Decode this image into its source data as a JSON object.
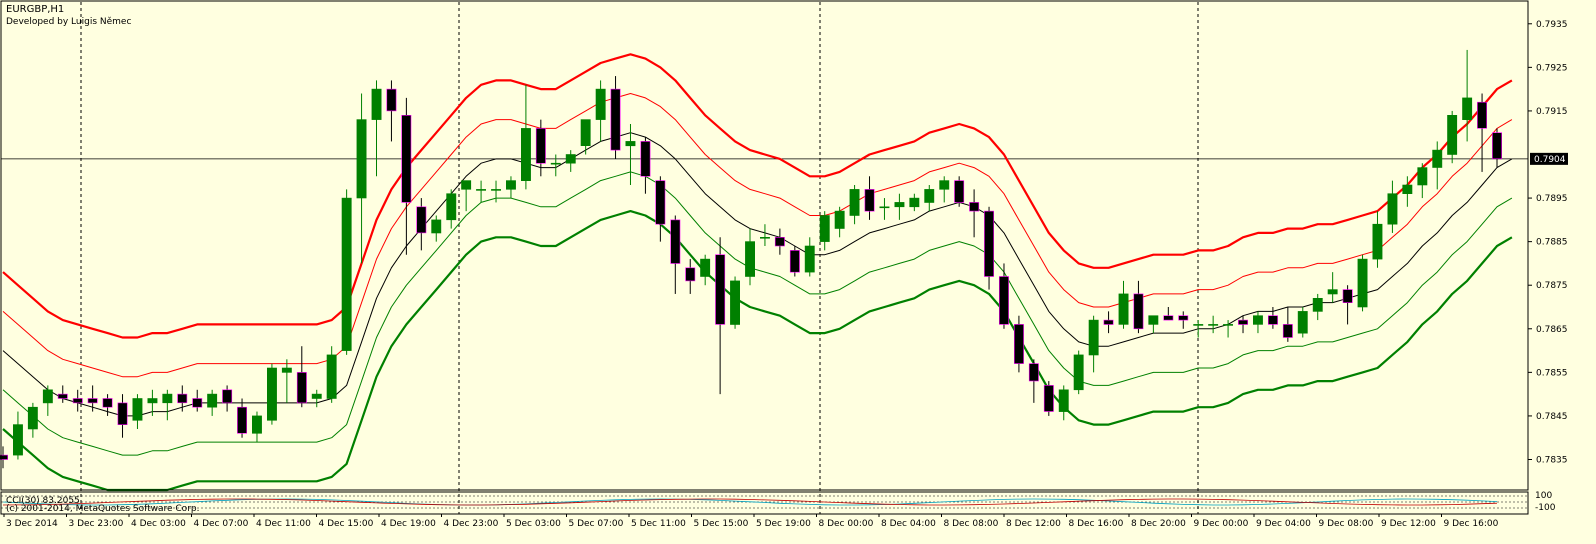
{
  "window": {
    "title": "EURGBP,H1",
    "subtitle": "Developed by Luigis Němec",
    "subwindow_label": "CCI(30) 83.2055",
    "watermark": "(c) 2001-2014, MetaQuotes Software Corp.",
    "subwindow_ticks": [
      "100",
      "-100"
    ]
  },
  "colors": {
    "background": "#ffffe0",
    "bull": "#008000",
    "bear": "#000000",
    "band_outer": "#ff0000",
    "band_inner": "#ff0000",
    "middle": "#000000",
    "lower_inner": "#008000",
    "lower_outer": "#008000"
  },
  "chart_data": {
    "type": "candlestick",
    "symbol": "EURGBP",
    "timeframe": "H1",
    "current_price": "0.7904",
    "yticks": [
      "0.7935",
      "0.7925",
      "0.7915",
      "0.7895",
      "0.7885",
      "0.7875",
      "0.7865",
      "0.7855",
      "0.7845",
      "0.7835"
    ],
    "ylim": [
      0.7828,
      0.794
    ],
    "xlabels": [
      "3 Dec 2014",
      "3 Dec 23:00",
      "4 Dec 03:00",
      "4 Dec 07:00",
      "4 Dec 11:00",
      "4 Dec 15:00",
      "4 Dec 19:00",
      "4 Dec 23:00",
      "5 Dec 03:00",
      "5 Dec 07:00",
      "5 Dec 11:00",
      "5 Dec 15:00",
      "5 Dec 19:00",
      "8 Dec 00:00",
      "8 Dec 04:00",
      "8 Dec 08:00",
      "8 Dec 12:00",
      "8 Dec 16:00",
      "8 Dec 20:00",
      "9 Dec 00:00",
      "9 Dec 04:00",
      "9 Dec 08:00",
      "9 Dec 12:00",
      "9 Dec 16:00"
    ],
    "candles": [
      {
        "o": 0.7836,
        "h": 0.7838,
        "l": 0.7833,
        "c": 0.7835
      },
      {
        "o": 0.7836,
        "h": 0.7846,
        "l": 0.7835,
        "c": 0.7843
      },
      {
        "o": 0.7842,
        "h": 0.7848,
        "l": 0.784,
        "c": 0.7847
      },
      {
        "o": 0.7848,
        "h": 0.7852,
        "l": 0.7845,
        "c": 0.7851
      },
      {
        "o": 0.785,
        "h": 0.7852,
        "l": 0.7848,
        "c": 0.7849
      },
      {
        "o": 0.7849,
        "h": 0.7851,
        "l": 0.7846,
        "c": 0.7848
      },
      {
        "o": 0.7849,
        "h": 0.7852,
        "l": 0.7846,
        "c": 0.7848
      },
      {
        "o": 0.7849,
        "h": 0.785,
        "l": 0.7845,
        "c": 0.7847
      },
      {
        "o": 0.7848,
        "h": 0.785,
        "l": 0.784,
        "c": 0.7843
      },
      {
        "o": 0.7844,
        "h": 0.785,
        "l": 0.7842,
        "c": 0.7849
      },
      {
        "o": 0.7848,
        "h": 0.7851,
        "l": 0.7845,
        "c": 0.7849
      },
      {
        "o": 0.7848,
        "h": 0.7851,
        "l": 0.7844,
        "c": 0.785
      },
      {
        "o": 0.785,
        "h": 0.7852,
        "l": 0.7846,
        "c": 0.7848
      },
      {
        "o": 0.7849,
        "h": 0.7851,
        "l": 0.7846,
        "c": 0.7847
      },
      {
        "o": 0.7847,
        "h": 0.7851,
        "l": 0.7845,
        "c": 0.785
      },
      {
        "o": 0.7851,
        "h": 0.7852,
        "l": 0.7846,
        "c": 0.7848
      },
      {
        "o": 0.7847,
        "h": 0.7849,
        "l": 0.784,
        "c": 0.7841
      },
      {
        "o": 0.7841,
        "h": 0.7846,
        "l": 0.7839,
        "c": 0.7845
      },
      {
        "o": 0.7844,
        "h": 0.7857,
        "l": 0.7843,
        "c": 0.7856
      },
      {
        "o": 0.7855,
        "h": 0.7858,
        "l": 0.7848,
        "c": 0.7856
      },
      {
        "o": 0.7855,
        "h": 0.7861,
        "l": 0.7847,
        "c": 0.7848
      },
      {
        "o": 0.7849,
        "h": 0.7851,
        "l": 0.7847,
        "c": 0.785
      },
      {
        "o": 0.7849,
        "h": 0.7861,
        "l": 0.7848,
        "c": 0.7859
      },
      {
        "o": 0.786,
        "h": 0.7897,
        "l": 0.7859,
        "c": 0.7895
      },
      {
        "o": 0.7895,
        "h": 0.7919,
        "l": 0.788,
        "c": 0.7913
      },
      {
        "o": 0.7913,
        "h": 0.7922,
        "l": 0.79,
        "c": 0.792
      },
      {
        "o": 0.792,
        "h": 0.7922,
        "l": 0.7908,
        "c": 0.7915
      },
      {
        "o": 0.7914,
        "h": 0.7918,
        "l": 0.7882,
        "c": 0.7894
      },
      {
        "o": 0.7893,
        "h": 0.7895,
        "l": 0.7883,
        "c": 0.7887
      },
      {
        "o": 0.7887,
        "h": 0.7891,
        "l": 0.7885,
        "c": 0.789
      },
      {
        "o": 0.789,
        "h": 0.7897,
        "l": 0.7888,
        "c": 0.7896
      },
      {
        "o": 0.7897,
        "h": 0.7899,
        "l": 0.7892,
        "c": 0.7899
      },
      {
        "o": 0.7897,
        "h": 0.7899,
        "l": 0.7894,
        "c": 0.7897
      },
      {
        "o": 0.7897,
        "h": 0.7899,
        "l": 0.7894,
        "c": 0.7897
      },
      {
        "o": 0.7897,
        "h": 0.79,
        "l": 0.7895,
        "c": 0.7899
      },
      {
        "o": 0.7899,
        "h": 0.7921,
        "l": 0.7897,
        "c": 0.7911
      },
      {
        "o": 0.7911,
        "h": 0.7913,
        "l": 0.79,
        "c": 0.7903
      },
      {
        "o": 0.7903,
        "h": 0.7905,
        "l": 0.79,
        "c": 0.7903
      },
      {
        "o": 0.7903,
        "h": 0.7906,
        "l": 0.7901,
        "c": 0.7905
      },
      {
        "o": 0.7907,
        "h": 0.7912,
        "l": 0.7905,
        "c": 0.7913
      },
      {
        "o": 0.7913,
        "h": 0.7922,
        "l": 0.7908,
        "c": 0.792
      },
      {
        "o": 0.792,
        "h": 0.7923,
        "l": 0.7904,
        "c": 0.7906
      },
      {
        "o": 0.7907,
        "h": 0.7912,
        "l": 0.7898,
        "c": 0.7908
      },
      {
        "o": 0.7908,
        "h": 0.7909,
        "l": 0.7896,
        "c": 0.79
      },
      {
        "o": 0.7899,
        "h": 0.79,
        "l": 0.7885,
        "c": 0.7889
      },
      {
        "o": 0.789,
        "h": 0.7891,
        "l": 0.7873,
        "c": 0.788
      },
      {
        "o": 0.7879,
        "h": 0.7881,
        "l": 0.7873,
        "c": 0.7876
      },
      {
        "o": 0.7877,
        "h": 0.7882,
        "l": 0.7875,
        "c": 0.7881
      },
      {
        "o": 0.7882,
        "h": 0.7886,
        "l": 0.785,
        "c": 0.7866
      },
      {
        "o": 0.7866,
        "h": 0.7877,
        "l": 0.7865,
        "c": 0.7876
      },
      {
        "o": 0.7877,
        "h": 0.7888,
        "l": 0.7875,
        "c": 0.7885
      },
      {
        "o": 0.7886,
        "h": 0.7889,
        "l": 0.7884,
        "c": 0.7886
      },
      {
        "o": 0.7886,
        "h": 0.7888,
        "l": 0.7882,
        "c": 0.7884
      },
      {
        "o": 0.7883,
        "h": 0.7884,
        "l": 0.7877,
        "c": 0.7878
      },
      {
        "o": 0.7878,
        "h": 0.7886,
        "l": 0.7877,
        "c": 0.7884
      },
      {
        "o": 0.7885,
        "h": 0.7892,
        "l": 0.7883,
        "c": 0.7891
      },
      {
        "o": 0.7888,
        "h": 0.7893,
        "l": 0.7886,
        "c": 0.7892
      },
      {
        "o": 0.7891,
        "h": 0.7898,
        "l": 0.7889,
        "c": 0.7897
      },
      {
        "o": 0.7897,
        "h": 0.79,
        "l": 0.789,
        "c": 0.7892
      },
      {
        "o": 0.7893,
        "h": 0.7895,
        "l": 0.789,
        "c": 0.7893
      },
      {
        "o": 0.7893,
        "h": 0.7896,
        "l": 0.789,
        "c": 0.7894
      },
      {
        "o": 0.7893,
        "h": 0.7896,
        "l": 0.7892,
        "c": 0.7895
      },
      {
        "o": 0.7894,
        "h": 0.7898,
        "l": 0.7892,
        "c": 0.7897
      },
      {
        "o": 0.7897,
        "h": 0.79,
        "l": 0.7894,
        "c": 0.7899
      },
      {
        "o": 0.7899,
        "h": 0.79,
        "l": 0.7893,
        "c": 0.7894
      },
      {
        "o": 0.7894,
        "h": 0.7897,
        "l": 0.7886,
        "c": 0.7892
      },
      {
        "o": 0.7892,
        "h": 0.7893,
        "l": 0.7874,
        "c": 0.7877
      },
      {
        "o": 0.7877,
        "h": 0.788,
        "l": 0.7865,
        "c": 0.7866
      },
      {
        "o": 0.7866,
        "h": 0.7868,
        "l": 0.7855,
        "c": 0.7857
      },
      {
        "o": 0.7857,
        "h": 0.7858,
        "l": 0.7848,
        "c": 0.7853
      },
      {
        "o": 0.7852,
        "h": 0.7853,
        "l": 0.7845,
        "c": 0.7846
      },
      {
        "o": 0.7846,
        "h": 0.7852,
        "l": 0.7844,
        "c": 0.7851
      },
      {
        "o": 0.7851,
        "h": 0.786,
        "l": 0.785,
        "c": 0.7859
      },
      {
        "o": 0.7859,
        "h": 0.7868,
        "l": 0.7855,
        "c": 0.7867
      },
      {
        "o": 0.7867,
        "h": 0.7869,
        "l": 0.7864,
        "c": 0.7866
      },
      {
        "o": 0.7866,
        "h": 0.7876,
        "l": 0.7865,
        "c": 0.7873
      },
      {
        "o": 0.7873,
        "h": 0.7876,
        "l": 0.7864,
        "c": 0.7865
      },
      {
        "o": 0.7866,
        "h": 0.7868,
        "l": 0.7864,
        "c": 0.7868
      },
      {
        "o": 0.7868,
        "h": 0.787,
        "l": 0.7867,
        "c": 0.7867
      },
      {
        "o": 0.7868,
        "h": 0.7869,
        "l": 0.7865,
        "c": 0.7867
      },
      {
        "o": 0.7866,
        "h": 0.7867,
        "l": 0.7863,
        "c": 0.7866
      },
      {
        "o": 0.7866,
        "h": 0.7868,
        "l": 0.7864,
        "c": 0.7866
      },
      {
        "o": 0.7866,
        "h": 0.7867,
        "l": 0.7863,
        "c": 0.7866
      },
      {
        "o": 0.7867,
        "h": 0.7868,
        "l": 0.7864,
        "c": 0.7866
      },
      {
        "o": 0.7866,
        "h": 0.7869,
        "l": 0.7864,
        "c": 0.7868
      },
      {
        "o": 0.7868,
        "h": 0.787,
        "l": 0.7865,
        "c": 0.7866
      },
      {
        "o": 0.7866,
        "h": 0.787,
        "l": 0.7862,
        "c": 0.7863
      },
      {
        "o": 0.7864,
        "h": 0.787,
        "l": 0.7863,
        "c": 0.7869
      },
      {
        "o": 0.7869,
        "h": 0.7873,
        "l": 0.7867,
        "c": 0.7872
      },
      {
        "o": 0.7873,
        "h": 0.7878,
        "l": 0.7871,
        "c": 0.7874
      },
      {
        "o": 0.7874,
        "h": 0.7875,
        "l": 0.7866,
        "c": 0.7871
      },
      {
        "o": 0.787,
        "h": 0.7882,
        "l": 0.7869,
        "c": 0.7881
      },
      {
        "o": 0.7881,
        "h": 0.7892,
        "l": 0.7879,
        "c": 0.7889
      },
      {
        "o": 0.7889,
        "h": 0.7899,
        "l": 0.7887,
        "c": 0.7896
      },
      {
        "o": 0.7896,
        "h": 0.79,
        "l": 0.7893,
        "c": 0.7898
      },
      {
        "o": 0.7898,
        "h": 0.7903,
        "l": 0.7895,
        "c": 0.7902
      },
      {
        "o": 0.7902,
        "h": 0.7908,
        "l": 0.7897,
        "c": 0.7906
      },
      {
        "o": 0.7905,
        "h": 0.7915,
        "l": 0.7903,
        "c": 0.7914
      },
      {
        "o": 0.7913,
        "h": 0.7929,
        "l": 0.7908,
        "c": 0.7918
      },
      {
        "o": 0.7917,
        "h": 0.7919,
        "l": 0.7901,
        "c": 0.7911
      },
      {
        "o": 0.791,
        "h": 0.7911,
        "l": 0.7902,
        "c": 0.7904
      }
    ],
    "bands": {
      "upper_outer": [
        0.7878,
        0.7875,
        0.7872,
        0.7869,
        0.7867,
        0.7866,
        0.7865,
        0.7864,
        0.7863,
        0.7863,
        0.7864,
        0.7864,
        0.7865,
        0.7866,
        0.7866,
        0.7866,
        0.7866,
        0.7866,
        0.7866,
        0.7866,
        0.7866,
        0.7866,
        0.7867,
        0.787,
        0.788,
        0.789,
        0.7897,
        0.7902,
        0.7906,
        0.791,
        0.7914,
        0.7918,
        0.7921,
        0.7922,
        0.7922,
        0.7921,
        0.792,
        0.792,
        0.7922,
        0.7924,
        0.7926,
        0.7927,
        0.7928,
        0.7927,
        0.7925,
        0.7922,
        0.7918,
        0.7914,
        0.7911,
        0.7908,
        0.7906,
        0.7905,
        0.7904,
        0.7902,
        0.79,
        0.79,
        0.7901,
        0.7903,
        0.7905,
        0.7906,
        0.7907,
        0.7908,
        0.791,
        0.7911,
        0.7912,
        0.7911,
        0.7909,
        0.7905,
        0.7899,
        0.7893,
        0.7887,
        0.7883,
        0.788,
        0.7879,
        0.7879,
        0.788,
        0.7881,
        0.7882,
        0.7882,
        0.7882,
        0.7883,
        0.7883,
        0.7884,
        0.7886,
        0.7887,
        0.7887,
        0.7888,
        0.7888,
        0.7889,
        0.7889,
        0.789,
        0.7891,
        0.7892,
        0.7895,
        0.7898,
        0.7902,
        0.7905,
        0.7909,
        0.7912,
        0.7916,
        0.792,
        0.7922
      ],
      "upper_inner": [
        0.7869,
        0.7866,
        0.7863,
        0.786,
        0.7858,
        0.7857,
        0.7856,
        0.7855,
        0.7854,
        0.7854,
        0.7855,
        0.7855,
        0.7856,
        0.7857,
        0.7857,
        0.7857,
        0.7857,
        0.7857,
        0.7857,
        0.7857,
        0.7857,
        0.7857,
        0.7858,
        0.7861,
        0.7871,
        0.7881,
        0.7888,
        0.7893,
        0.7897,
        0.7901,
        0.7905,
        0.7909,
        0.7912,
        0.7913,
        0.7913,
        0.7912,
        0.7911,
        0.7911,
        0.7913,
        0.7915,
        0.7917,
        0.7918,
        0.7919,
        0.7918,
        0.7916,
        0.7913,
        0.7909,
        0.7905,
        0.7902,
        0.7899,
        0.7897,
        0.7896,
        0.7895,
        0.7893,
        0.7891,
        0.7891,
        0.7892,
        0.7894,
        0.7896,
        0.7897,
        0.7898,
        0.7899,
        0.7901,
        0.7902,
        0.7903,
        0.7902,
        0.79,
        0.7896,
        0.789,
        0.7884,
        0.7878,
        0.7874,
        0.7871,
        0.787,
        0.787,
        0.7871,
        0.7872,
        0.7873,
        0.7873,
        0.7873,
        0.7874,
        0.7874,
        0.7875,
        0.7877,
        0.7878,
        0.7878,
        0.7879,
        0.7879,
        0.788,
        0.788,
        0.7881,
        0.7882,
        0.7883,
        0.7886,
        0.7889,
        0.7893,
        0.7896,
        0.79,
        0.7903,
        0.7907,
        0.7911,
        0.7913
      ],
      "middle": [
        0.786,
        0.7857,
        0.7854,
        0.7851,
        0.7849,
        0.7848,
        0.7847,
        0.7846,
        0.7845,
        0.7845,
        0.7846,
        0.7846,
        0.7847,
        0.7848,
        0.7848,
        0.7848,
        0.7848,
        0.7848,
        0.7848,
        0.7848,
        0.7848,
        0.7848,
        0.7849,
        0.7852,
        0.7862,
        0.7872,
        0.7879,
        0.7884,
        0.7888,
        0.7892,
        0.7896,
        0.79,
        0.7903,
        0.7904,
        0.7904,
        0.7903,
        0.7902,
        0.7902,
        0.7904,
        0.7906,
        0.7908,
        0.7909,
        0.791,
        0.7909,
        0.7907,
        0.7904,
        0.79,
        0.7896,
        0.7893,
        0.789,
        0.7888,
        0.7887,
        0.7886,
        0.7884,
        0.7882,
        0.7882,
        0.7883,
        0.7885,
        0.7887,
        0.7888,
        0.7889,
        0.789,
        0.7892,
        0.7893,
        0.7894,
        0.7893,
        0.7891,
        0.7887,
        0.7881,
        0.7875,
        0.7869,
        0.7865,
        0.7862,
        0.7861,
        0.7861,
        0.7862,
        0.7863,
        0.7864,
        0.7864,
        0.7864,
        0.7865,
        0.7865,
        0.7866,
        0.7868,
        0.7869,
        0.7869,
        0.787,
        0.787,
        0.7871,
        0.7871,
        0.7872,
        0.7873,
        0.7874,
        0.7877,
        0.788,
        0.7884,
        0.7887,
        0.7891,
        0.7894,
        0.7898,
        0.7902,
        0.7904
      ],
      "lower_inner": [
        0.7851,
        0.7848,
        0.7845,
        0.7842,
        0.784,
        0.7839,
        0.7838,
        0.7837,
        0.7836,
        0.7836,
        0.7837,
        0.7837,
        0.7838,
        0.7839,
        0.7839,
        0.7839,
        0.7839,
        0.7839,
        0.7839,
        0.7839,
        0.7839,
        0.7839,
        0.784,
        0.7843,
        0.7853,
        0.7863,
        0.787,
        0.7875,
        0.7879,
        0.7883,
        0.7887,
        0.7891,
        0.7894,
        0.7895,
        0.7895,
        0.7894,
        0.7893,
        0.7893,
        0.7895,
        0.7897,
        0.7899,
        0.79,
        0.7901,
        0.79,
        0.7898,
        0.7895,
        0.7891,
        0.7887,
        0.7884,
        0.7881,
        0.7879,
        0.7878,
        0.7877,
        0.7875,
        0.7873,
        0.7873,
        0.7874,
        0.7876,
        0.7878,
        0.7879,
        0.788,
        0.7881,
        0.7883,
        0.7884,
        0.7885,
        0.7884,
        0.7882,
        0.7878,
        0.7872,
        0.7866,
        0.786,
        0.7856,
        0.7853,
        0.7852,
        0.7852,
        0.7853,
        0.7854,
        0.7855,
        0.7855,
        0.7855,
        0.7856,
        0.7856,
        0.7857,
        0.7859,
        0.786,
        0.786,
        0.7861,
        0.7861,
        0.7862,
        0.7862,
        0.7863,
        0.7864,
        0.7865,
        0.7868,
        0.7871,
        0.7875,
        0.7878,
        0.7882,
        0.7885,
        0.7889,
        0.7893,
        0.7895
      ],
      "lower_outer": [
        0.7842,
        0.7839,
        0.7836,
        0.7833,
        0.7831,
        0.783,
        0.7829,
        0.7828,
        0.7827,
        0.7827,
        0.7828,
        0.7828,
        0.7829,
        0.783,
        0.783,
        0.783,
        0.783,
        0.783,
        0.783,
        0.783,
        0.783,
        0.783,
        0.7831,
        0.7834,
        0.7844,
        0.7854,
        0.7861,
        0.7866,
        0.787,
        0.7874,
        0.7878,
        0.7882,
        0.7885,
        0.7886,
        0.7886,
        0.7885,
        0.7884,
        0.7884,
        0.7886,
        0.7888,
        0.789,
        0.7891,
        0.7892,
        0.7891,
        0.7889,
        0.7886,
        0.7882,
        0.7878,
        0.7875,
        0.7872,
        0.787,
        0.7869,
        0.7868,
        0.7866,
        0.7864,
        0.7864,
        0.7865,
        0.7867,
        0.7869,
        0.787,
        0.7871,
        0.7872,
        0.7874,
        0.7875,
        0.7876,
        0.7875,
        0.7873,
        0.7869,
        0.7863,
        0.7857,
        0.7851,
        0.7847,
        0.7844,
        0.7843,
        0.7843,
        0.7844,
        0.7845,
        0.7846,
        0.7846,
        0.7846,
        0.7847,
        0.7847,
        0.7848,
        0.785,
        0.7851,
        0.7851,
        0.7852,
        0.7852,
        0.7853,
        0.7853,
        0.7854,
        0.7855,
        0.7856,
        0.7859,
        0.7862,
        0.7866,
        0.7869,
        0.7873,
        0.7876,
        0.788,
        0.7884,
        0.7886
      ]
    },
    "session_separators": [
      "3 Dec 23:00",
      "4 Dec 23:00",
      "5 Dec 23:00",
      "8 Dec 23:00",
      "9 Dec 23:00"
    ],
    "grid": false,
    "legend": "none"
  }
}
